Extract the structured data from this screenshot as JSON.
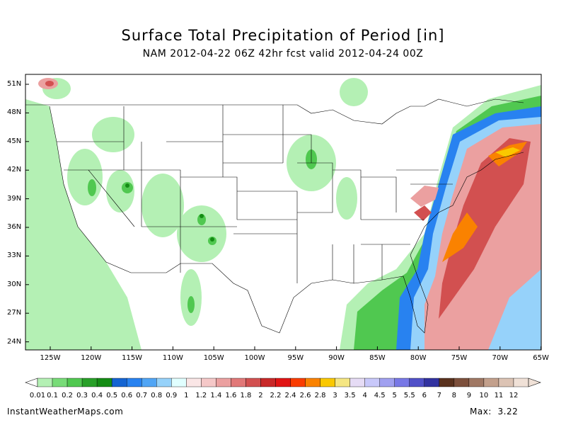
{
  "title": "Surface Total Precipitation of Period [in]",
  "subtitle": "NAM 2012-04-22 06Z 42hr fcst valid 2012-04-24 00Z",
  "lat_labels": [
    "51N",
    "48N",
    "45N",
    "42N",
    "39N",
    "36N",
    "33N",
    "30N",
    "27N",
    "24N"
  ],
  "lon_labels": [
    "125W",
    "120W",
    "115W",
    "110W",
    "105W",
    "100W",
    "95W",
    "90W",
    "85W",
    "80W",
    "75W",
    "70W",
    "65W"
  ],
  "colorbar": {
    "levels": [
      "0.01",
      "0.1",
      "0.2",
      "0.3",
      "0.4",
      "0.5",
      "0.6",
      "0.7",
      "0.8",
      "0.9",
      "1",
      "1.2",
      "1.4",
      "1.6",
      "1.8",
      "2",
      "2.2",
      "2.4",
      "2.6",
      "2.8",
      "3",
      "3.5",
      "4",
      "4.5",
      "5",
      "5.5",
      "6",
      "7",
      "8",
      "9",
      "10",
      "11",
      "12"
    ],
    "colors": [
      "#b4f0b4",
      "#78dc78",
      "#50c850",
      "#28a028",
      "#148c14",
      "#1464d2",
      "#2882f0",
      "#50a5f5",
      "#96d2fa",
      "#e1ffff",
      "#fae6e6",
      "#f5c8c8",
      "#eba0a0",
      "#e17878",
      "#d25050",
      "#c82828",
      "#e11414",
      "#fa3c00",
      "#fa8200",
      "#fac800",
      "#f5e682",
      "#e6dcf5",
      "#c8c8fa",
      "#a0a0f0",
      "#7878e6",
      "#5050c8",
      "#3232a0",
      "#5a321e",
      "#7d503c",
      "#a07864",
      "#c3a08c",
      "#dcc3b4",
      "#f0e1d7"
    ]
  },
  "credit": "InstantWeatherMaps.com",
  "max_label": "Max:",
  "max_value": "3.22"
}
